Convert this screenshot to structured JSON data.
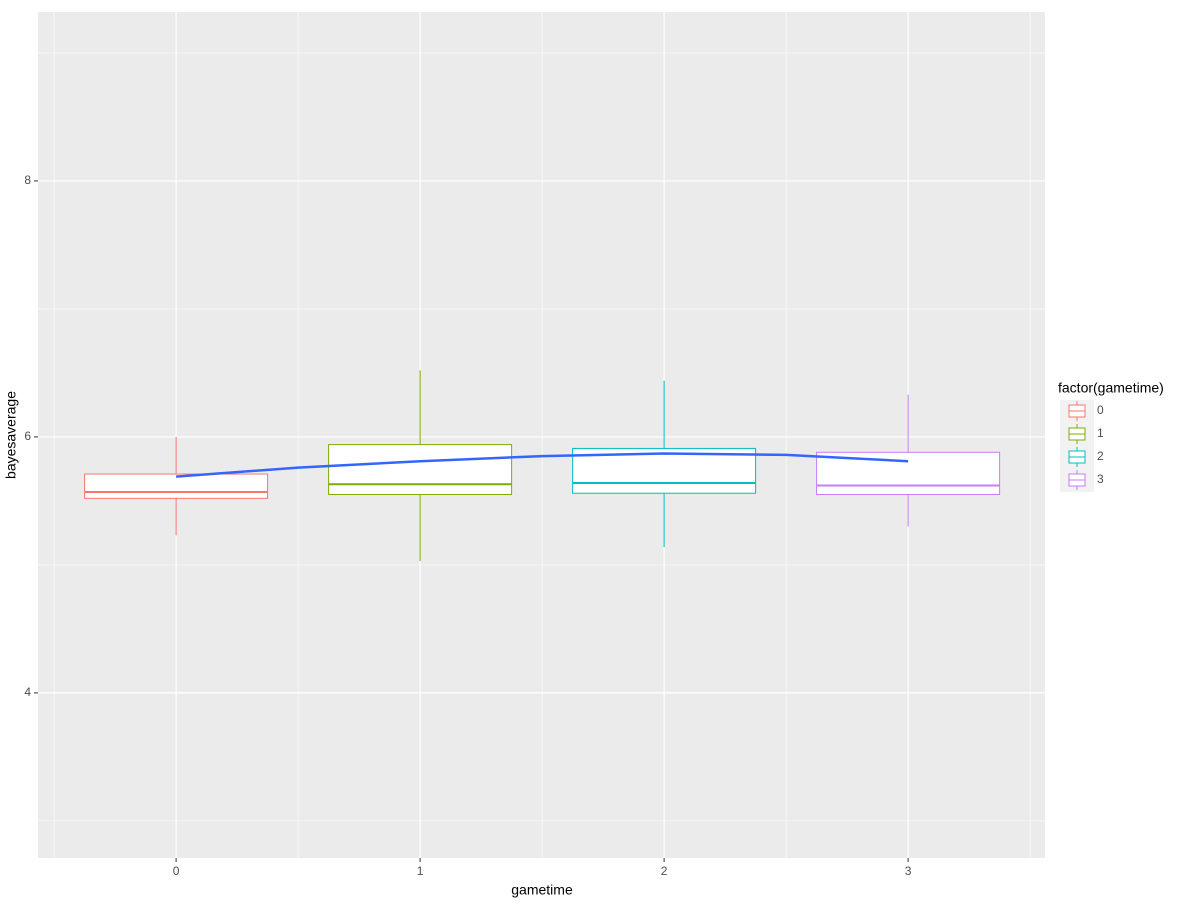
{
  "chart_data": {
    "type": "box",
    "x_label": "gametime",
    "y_label": "bayesaverage",
    "xlim": [
      -0.566,
      3.561
    ],
    "xticks": [
      0,
      1,
      2,
      3
    ],
    "ylim": [
      2.71,
      9.32
    ],
    "yticks": [
      4,
      6,
      8
    ],
    "grid": true,
    "legend_title": "factor(gametime)",
    "legend_position": "right",
    "boxes": [
      {
        "name": "0",
        "color": "#F8766D",
        "min": 5.23,
        "q1": 5.52,
        "median": 5.57,
        "q3": 5.71,
        "max": 6.0
      },
      {
        "name": "1",
        "color": "#7CAE00",
        "min": 5.03,
        "q1": 5.55,
        "median": 5.63,
        "q3": 5.94,
        "max": 6.52
      },
      {
        "name": "2",
        "color": "#00BFC4",
        "min": 5.14,
        "q1": 5.56,
        "median": 5.64,
        "q3": 5.91,
        "max": 6.44
      },
      {
        "name": "3",
        "color": "#C77CFF",
        "min": 5.3,
        "q1": 5.55,
        "median": 5.62,
        "q3": 5.88,
        "max": 6.33
      }
    ],
    "smooth": {
      "color": "#3366FF",
      "x": [
        0,
        0.5,
        1,
        1.5,
        2,
        2.5,
        3
      ],
      "values": [
        5.69,
        5.76,
        5.81,
        5.85,
        5.87,
        5.86,
        5.81
      ]
    }
  }
}
